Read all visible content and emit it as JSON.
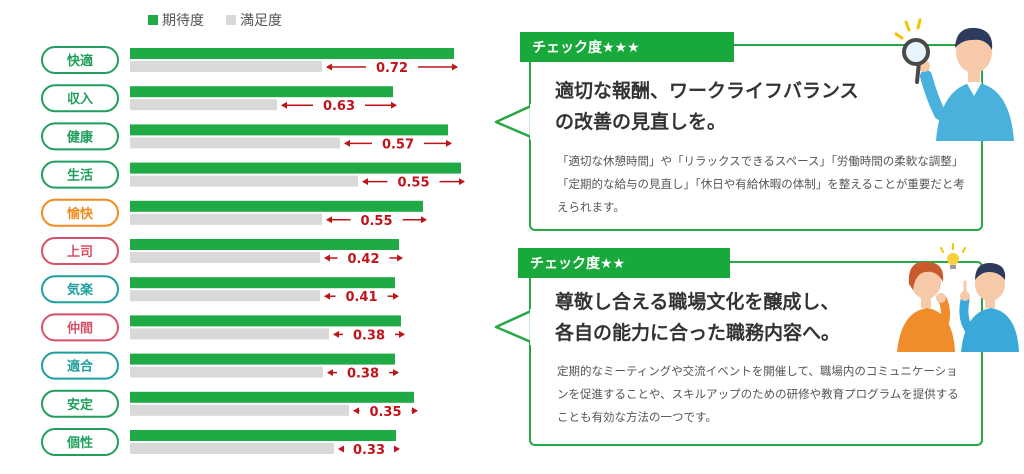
{
  "legend": {
    "expectation": "期待度",
    "satisfaction": "満足度"
  },
  "colors": {
    "expectation": "#1faa46",
    "satisfaction": "#d9d9d9",
    "gap": "#c0141b",
    "panel_border": "#27a845",
    "tag_bg": "#18a83c"
  },
  "chart_data": {
    "type": "bar",
    "orientation": "horizontal",
    "categories": [
      "快適",
      "収入",
      "健康",
      "生活",
      "愉快",
      "上司",
      "気楽",
      "仲間",
      "適合",
      "安定",
      "個性"
    ],
    "category_colors": [
      "#1f9e5c",
      "#1f9e5c",
      "#1f9e5c",
      "#1f9e5c",
      "#f08c1e",
      "#d85068",
      "#1f9e9e",
      "#d85068",
      "#1f9e9e",
      "#1f9e5c",
      "#1f9e5c"
    ],
    "series": [
      {
        "name": "期待度",
        "values": [
          3.24,
          2.63,
          3.18,
          3.31,
          2.93,
          2.69,
          2.65,
          2.71,
          2.65,
          2.84,
          2.66
        ]
      },
      {
        "name": "満足度",
        "values": [
          1.92,
          1.47,
          2.1,
          2.28,
          1.92,
          1.9,
          1.9,
          1.99,
          1.93,
          2.19,
          2.04
        ]
      }
    ],
    "gap_labels": [
      "0.72",
      "0.63",
      "0.57",
      "0.55",
      "0.55",
      "0.42",
      "0.41",
      "0.38",
      "0.38",
      "0.35",
      "0.33"
    ],
    "xlim": [
      0,
      3.5
    ],
    "grid": false,
    "legend_position": "top-left"
  },
  "panels": [
    {
      "tag": "チェック度★★★",
      "headline_1": "適切な報酬、ワークライフバランス",
      "headline_2": "の改善の見直しを。",
      "body": "「適切な休憩時間」や「リラックスできるスペース」「労働時間の柔軟な調整」「定期的な給与の見直し」「休日や有給休暇の体制」を整えることが重要だと考えられます。"
    },
    {
      "tag": "チェック度★★",
      "headline_1": "尊敬し合える職場文化を醸成し、",
      "headline_2": "各自の能力に合った職務内容へ。",
      "body": "定期的なミーティングや交流イベントを開催して、職場内のコミュニケーションを促進することや、スキルアップのための研修や教育プログラムを提供することも有効な方法の一つです。"
    }
  ]
}
